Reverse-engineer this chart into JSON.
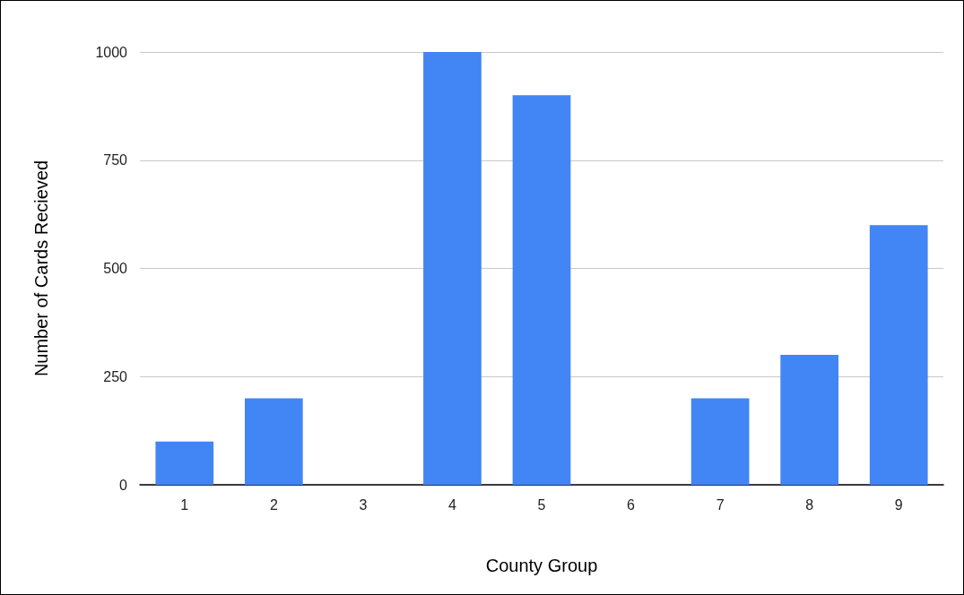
{
  "chart_data": {
    "type": "bar",
    "xlabel": "County Group",
    "ylabel": "Number of Cards Recieved",
    "categories": [
      "1",
      "2",
      "3",
      "4",
      "5",
      "6",
      "7",
      "8",
      "9"
    ],
    "values": [
      100,
      200,
      0,
      1000,
      900,
      0,
      200,
      300,
      600
    ],
    "color": "#4285f4",
    "ylim": [
      0,
      1000
    ],
    "yticks": [
      0,
      250,
      500,
      750,
      1000
    ],
    "grid": "y"
  }
}
